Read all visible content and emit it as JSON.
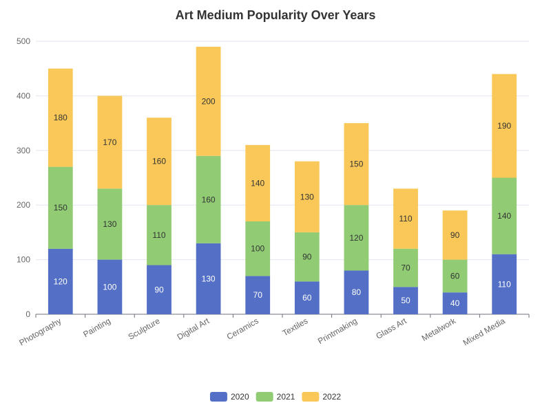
{
  "chart_data": {
    "type": "bar",
    "stacked": true,
    "title": "Art Medium Popularity Over Years",
    "xlabel": "",
    "ylabel": "",
    "categories": [
      "Photography",
      "Painting",
      "Sculpture",
      "Digital Art",
      "Ceramics",
      "Textiles",
      "Printmaking",
      "Glass Art",
      "Metalwork",
      "Mixed Media"
    ],
    "series": [
      {
        "name": "2020",
        "color": "#5470c6",
        "label_color": "#ffffff",
        "values": [
          120,
          100,
          90,
          130,
          70,
          60,
          80,
          50,
          40,
          110
        ]
      },
      {
        "name": "2021",
        "color": "#91cc75",
        "label_color": "#333333",
        "values": [
          150,
          130,
          110,
          160,
          100,
          90,
          120,
          70,
          60,
          140
        ]
      },
      {
        "name": "2022",
        "color": "#fac858",
        "label_color": "#333333",
        "values": [
          180,
          170,
          160,
          200,
          140,
          130,
          150,
          110,
          90,
          190
        ]
      }
    ],
    "ylim": [
      0,
      500
    ],
    "yticks": [
      0,
      100,
      200,
      300,
      400,
      500
    ],
    "grid": true,
    "legend_position": "bottom-center"
  }
}
